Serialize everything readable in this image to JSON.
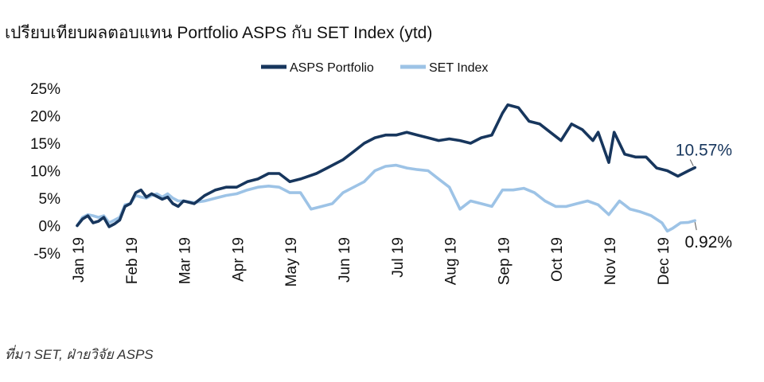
{
  "chart_data": {
    "type": "line",
    "title": "เปรียบเทียบผลตอบแทน Portfolio ASPS กับ SET Index (ytd)",
    "source": "ที่มา SET, ฝ่ายวิจัย ASPS",
    "xlabel": "",
    "ylabel": "",
    "ylim": [
      -5,
      25
    ],
    "y_ticks": [
      "25%",
      "20%",
      "15%",
      "10%",
      "5%",
      "0%",
      "-5%"
    ],
    "y_tick_values": [
      25,
      20,
      15,
      10,
      5,
      0,
      -5
    ],
    "x_ticks": [
      "Jan 19",
      "Feb 19",
      "Mar 19",
      "Apr 19",
      "May 19",
      "Jun 19",
      "Jul 19",
      "Aug 19",
      "Sep 19",
      "Oct 19",
      "Nov 19",
      "Dec 19"
    ],
    "grid": false,
    "legend_position": "top-center",
    "series": [
      {
        "name": "ASPS Portfolio",
        "color": "#17365d",
        "end_label": "10.57%",
        "points": [
          [
            0,
            0
          ],
          [
            0.1,
            1.2
          ],
          [
            0.2,
            1.8
          ],
          [
            0.3,
            0.5
          ],
          [
            0.4,
            0.8
          ],
          [
            0.5,
            1.5
          ],
          [
            0.6,
            -0.2
          ],
          [
            0.7,
            0.3
          ],
          [
            0.8,
            1.0
          ],
          [
            0.9,
            3.5
          ],
          [
            1.0,
            4.0
          ],
          [
            1.1,
            6.0
          ],
          [
            1.2,
            6.5
          ],
          [
            1.3,
            5.2
          ],
          [
            1.4,
            5.8
          ],
          [
            1.5,
            5.3
          ],
          [
            1.6,
            4.8
          ],
          [
            1.7,
            5.2
          ],
          [
            1.8,
            4.0
          ],
          [
            1.9,
            3.5
          ],
          [
            2.0,
            4.5
          ],
          [
            2.2,
            4.0
          ],
          [
            2.4,
            5.5
          ],
          [
            2.6,
            6.5
          ],
          [
            2.8,
            7.0
          ],
          [
            3.0,
            7.0
          ],
          [
            3.2,
            8.0
          ],
          [
            3.4,
            8.5
          ],
          [
            3.6,
            9.5
          ],
          [
            3.8,
            9.5
          ],
          [
            4.0,
            8.0
          ],
          [
            4.2,
            8.5
          ],
          [
            4.5,
            9.5
          ],
          [
            4.7,
            10.5
          ],
          [
            5.0,
            12.0
          ],
          [
            5.2,
            13.5
          ],
          [
            5.4,
            15.0
          ],
          [
            5.6,
            16.0
          ],
          [
            5.8,
            16.5
          ],
          [
            6.0,
            16.5
          ],
          [
            6.2,
            17.0
          ],
          [
            6.4,
            16.5
          ],
          [
            6.6,
            16.0
          ],
          [
            6.8,
            15.5
          ],
          [
            7.0,
            15.8
          ],
          [
            7.2,
            15.5
          ],
          [
            7.4,
            15.0
          ],
          [
            7.6,
            16.0
          ],
          [
            7.8,
            16.5
          ],
          [
            8.0,
            20.5
          ],
          [
            8.1,
            22.0
          ],
          [
            8.3,
            21.5
          ],
          [
            8.5,
            19.0
          ],
          [
            8.7,
            18.5
          ],
          [
            8.9,
            17.0
          ],
          [
            9.1,
            15.5
          ],
          [
            9.3,
            18.5
          ],
          [
            9.5,
            17.5
          ],
          [
            9.7,
            15.5
          ],
          [
            9.8,
            17.0
          ],
          [
            10.0,
            11.5
          ],
          [
            10.1,
            17.0
          ],
          [
            10.3,
            13.0
          ],
          [
            10.5,
            12.5
          ],
          [
            10.7,
            12.5
          ],
          [
            10.9,
            10.5
          ],
          [
            11.1,
            10.0
          ],
          [
            11.3,
            9.0
          ],
          [
            11.5,
            10.0
          ],
          [
            11.62,
            10.57
          ]
        ]
      },
      {
        "name": "SET Index",
        "color": "#9dc3e6",
        "end_label": "0.92%",
        "points": [
          [
            0,
            0
          ],
          [
            0.1,
            1.5
          ],
          [
            0.2,
            2.0
          ],
          [
            0.3,
            1.8
          ],
          [
            0.4,
            1.5
          ],
          [
            0.5,
            1.8
          ],
          [
            0.6,
            0.5
          ],
          [
            0.7,
            1.0
          ],
          [
            0.8,
            1.5
          ],
          [
            0.9,
            3.8
          ],
          [
            1.0,
            4.0
          ],
          [
            1.1,
            5.5
          ],
          [
            1.2,
            5.2
          ],
          [
            1.3,
            5.0
          ],
          [
            1.4,
            5.5
          ],
          [
            1.5,
            5.8
          ],
          [
            1.6,
            5.2
          ],
          [
            1.7,
            5.8
          ],
          [
            1.8,
            5.0
          ],
          [
            1.9,
            4.5
          ],
          [
            2.0,
            4.5
          ],
          [
            2.2,
            4.2
          ],
          [
            2.4,
            4.5
          ],
          [
            2.6,
            5.0
          ],
          [
            2.8,
            5.5
          ],
          [
            3.0,
            5.8
          ],
          [
            3.2,
            6.5
          ],
          [
            3.4,
            7.0
          ],
          [
            3.6,
            7.2
          ],
          [
            3.8,
            7.0
          ],
          [
            4.0,
            6.0
          ],
          [
            4.2,
            6.0
          ],
          [
            4.4,
            3.0
          ],
          [
            4.6,
            3.5
          ],
          [
            4.8,
            4.0
          ],
          [
            5.0,
            6.0
          ],
          [
            5.2,
            7.0
          ],
          [
            5.4,
            8.0
          ],
          [
            5.6,
            10.0
          ],
          [
            5.8,
            10.8
          ],
          [
            6.0,
            11.0
          ],
          [
            6.2,
            10.5
          ],
          [
            6.4,
            10.2
          ],
          [
            6.6,
            10.0
          ],
          [
            6.8,
            8.5
          ],
          [
            7.0,
            7.0
          ],
          [
            7.2,
            3.0
          ],
          [
            7.4,
            4.5
          ],
          [
            7.6,
            4.0
          ],
          [
            7.8,
            3.5
          ],
          [
            8.0,
            6.5
          ],
          [
            8.2,
            6.5
          ],
          [
            8.4,
            6.8
          ],
          [
            8.6,
            6.0
          ],
          [
            8.8,
            4.5
          ],
          [
            9.0,
            3.5
          ],
          [
            9.2,
            3.5
          ],
          [
            9.4,
            4.0
          ],
          [
            9.6,
            4.5
          ],
          [
            9.8,
            3.8
          ],
          [
            10.0,
            2.0
          ],
          [
            10.2,
            4.5
          ],
          [
            10.4,
            3.0
          ],
          [
            10.6,
            2.5
          ],
          [
            10.8,
            1.8
          ],
          [
            11.0,
            0.5
          ],
          [
            11.1,
            -1.0
          ],
          [
            11.2,
            -0.5
          ],
          [
            11.35,
            0.5
          ],
          [
            11.5,
            0.6
          ],
          [
            11.62,
            0.92
          ]
        ]
      }
    ]
  }
}
